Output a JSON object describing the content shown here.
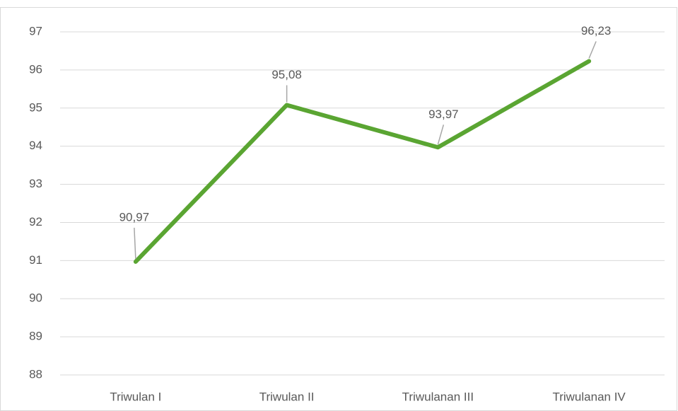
{
  "chart_data": {
    "type": "line",
    "categories": [
      "Triwulan I",
      "Triwulan II",
      "Triwulanan III",
      "Triwulanan IV"
    ],
    "values": [
      90.97,
      95.08,
      93.97,
      96.23
    ],
    "value_labels": [
      "90,97",
      "95,08",
      "93,97",
      "96,23"
    ],
    "color": "#5aa532",
    "ylim": [
      88,
      97
    ],
    "yticks": [
      88,
      89,
      90,
      91,
      92,
      93,
      94,
      95,
      96,
      97
    ],
    "grid": true
  }
}
